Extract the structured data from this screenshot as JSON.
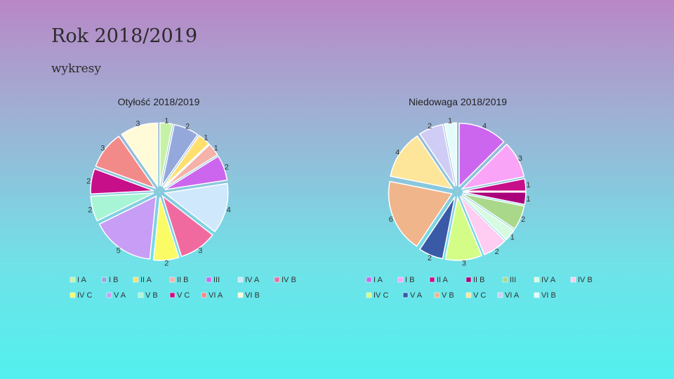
{
  "slide": {
    "title": "Rok 2018/2019",
    "subtitle": "wykresy"
  },
  "chart_data": [
    {
      "type": "pie",
      "title": "Otyłość 2018/2019",
      "slices": [
        {
          "label": "I A",
          "value": 1,
          "color": "#c6f2a8"
        },
        {
          "label": "I B",
          "value": 2,
          "color": "#94a8dc"
        },
        {
          "label": "II A",
          "value": 1,
          "color": "#ffe06e"
        },
        {
          "label": "II B",
          "value": 1,
          "color": "#f4b2a8"
        },
        {
          "label": "III",
          "value": 2,
          "color": "#cc66ee"
        },
        {
          "label": "IV A",
          "value": 4,
          "color": "#cfe8fb"
        },
        {
          "label": "IV B",
          "value": 3,
          "color": "#f06aa0"
        },
        {
          "label": "IV C",
          "value": 2,
          "color": "#fbfb66"
        },
        {
          "label": "V A",
          "value": 5,
          "color": "#c79df5"
        },
        {
          "label": "V B",
          "value": 2,
          "color": "#a8f5d5"
        },
        {
          "label": "V C",
          "value": 2,
          "color": "#c80f8a"
        },
        {
          "label": "VI A",
          "value": 3,
          "color": "#f28a8a"
        },
        {
          "label": "VI B",
          "value": 3,
          "color": "#fffbd8"
        }
      ],
      "legend_rows": [
        [
          "I A",
          "I B",
          "II A",
          "II B",
          "III",
          "IV A",
          "IV B"
        ],
        [
          "IV C",
          "V A",
          "V B",
          "V C",
          "VI A",
          "VI B"
        ]
      ]
    },
    {
      "type": "pie",
      "title": "Niedowaga 2018/2019",
      "slices": [
        {
          "label": "I A",
          "value": 4,
          "color": "#cc66ee"
        },
        {
          "label": "I B",
          "value": 3,
          "color": "#f9a4f7"
        },
        {
          "label": "II A",
          "value": 1,
          "color": "#c80f8a"
        },
        {
          "label": "II B",
          "value": 1,
          "color": "#aa007a"
        },
        {
          "label": "III",
          "value": 2,
          "color": "#a9d88a"
        },
        {
          "label": "IV A",
          "value": 1,
          "color": "#d6fbe0"
        },
        {
          "label": "IV B",
          "value": 2,
          "color": "#ffccf2"
        },
        {
          "label": "IV C",
          "value": 3,
          "color": "#d4fd88"
        },
        {
          "label": "V A",
          "value": 2,
          "color": "#3a5aa8"
        },
        {
          "label": "V B",
          "value": 6,
          "color": "#f0b58a"
        },
        {
          "label": "V C",
          "value": 4,
          "color": "#fde59a"
        },
        {
          "label": "VI A",
          "value": 2,
          "color": "#cfcdf5"
        },
        {
          "label": "VI B",
          "value": 1,
          "color": "#e4fbfb"
        }
      ],
      "legend_rows": [
        [
          "I A",
          "I B",
          "II A",
          "II B",
          "III",
          "IV A",
          "IV B"
        ],
        [
          "IV C",
          "V A",
          "V B",
          "V C",
          "VI A",
          "VI B"
        ]
      ]
    }
  ]
}
